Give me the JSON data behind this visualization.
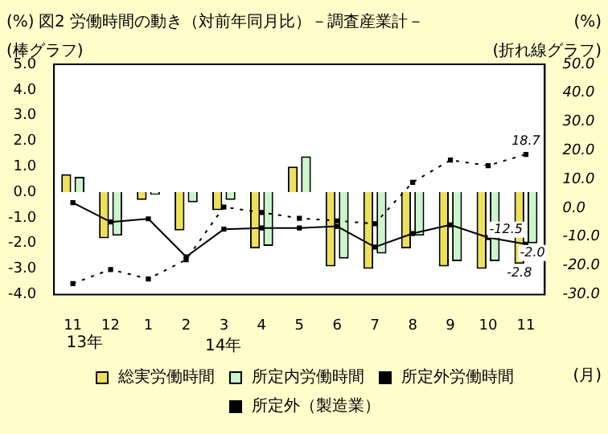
{
  "chart_data": {
    "type": "bar",
    "title": "図2 労働時間の動き（対前年同月比）－調査産業計－",
    "categories": [
      "11",
      "12",
      "1",
      "2",
      "3",
      "4",
      "5",
      "6",
      "7",
      "8",
      "9",
      "10",
      "11"
    ],
    "series": [
      {
        "name": "総実労働時間",
        "color": "#eee05a",
        "values": [
          0.7,
          -1.8,
          -0.3,
          -1.5,
          -0.7,
          -2.2,
          1.0,
          -2.9,
          -3.0,
          -2.2,
          -2.9,
          -3.0,
          -2.8
        ],
        "value_labels": [
          null,
          null,
          null,
          null,
          null,
          null,
          null,
          null,
          null,
          null,
          null,
          null,
          "-2.8"
        ]
      },
      {
        "name": "所定内労働時間",
        "color": "#ccf5cc",
        "values": [
          0.6,
          -1.7,
          -0.1,
          -0.4,
          -0.3,
          -2.1,
          1.4,
          -2.6,
          -2.4,
          -1.7,
          -2.7,
          -2.7,
          -2.0
        ],
        "value_labels": [
          null,
          null,
          null,
          null,
          null,
          null,
          null,
          null,
          null,
          null,
          null,
          null,
          "-2.0"
        ]
      },
      {
        "name": "所定外労働時間",
        "type": "line",
        "axis": "y2",
        "color": "#000000",
        "line_style": "solid",
        "values": [
          1.9,
          -4.8,
          -3.7,
          -16.9,
          -7.3,
          -6.9,
          -6.9,
          -6.3,
          -13.5,
          -8.8,
          -5.8,
          -10.2,
          -12.5
        ],
        "value_labels": [
          null,
          null,
          null,
          null,
          null,
          null,
          null,
          null,
          null,
          null,
          null,
          null,
          "-12.5"
        ]
      },
      {
        "name": "所定外（製造業）",
        "type": "line",
        "axis": "y2",
        "color": "#000000",
        "line_style": "dotted",
        "values": [
          -26.2,
          -21.3,
          -24.6,
          -17.9,
          0.4,
          -1.5,
          -3.5,
          -4.4,
          -5.4,
          9.0,
          16.7,
          14.8,
          18.7
        ],
        "value_labels": [
          null,
          null,
          null,
          null,
          null,
          null,
          null,
          null,
          null,
          null,
          null,
          null,
          "18.7"
        ]
      }
    ],
    "ylim": [
      -4,
      5
    ],
    "yticks": [
      {
        "value": -4,
        "label": "-4.0"
      },
      {
        "value": -3,
        "label": "-3.0"
      },
      {
        "value": -2,
        "label": "-2.0"
      },
      {
        "value": -1,
        "label": "-1.0"
      },
      {
        "value": 0,
        "label": "0.0"
      },
      {
        "value": 1,
        "label": "1.0"
      },
      {
        "value": 2,
        "label": "2.0"
      },
      {
        "value": 3,
        "label": "3.0"
      },
      {
        "value": 4,
        "label": "4.0"
      },
      {
        "value": 5,
        "label": "5.0"
      }
    ],
    "y2lim": [
      -30,
      50
    ],
    "y2ticks": [
      {
        "value": -30,
        "label": "-30.0"
      },
      {
        "value": -20,
        "label": "-20.0"
      },
      {
        "value": -10,
        "label": "-10.0"
      },
      {
        "value": 0,
        "label": "0.0"
      },
      {
        "value": 10,
        "label": "10.0"
      },
      {
        "value": 20,
        "label": "20.0"
      },
      {
        "value": 30,
        "label": "30.0"
      },
      {
        "value": 40,
        "label": "40.0"
      },
      {
        "value": 50,
        "label": "50.0"
      }
    ],
    "ylabel": "(棒グラフ)",
    "y2label": "(折れ線グラフ)",
    "marker": "square",
    "legend": "bottom",
    "grid": false,
    "annotations": [
      "(%)",
      "(%)",
      "13年",
      "14年",
      "(月)"
    ]
  }
}
